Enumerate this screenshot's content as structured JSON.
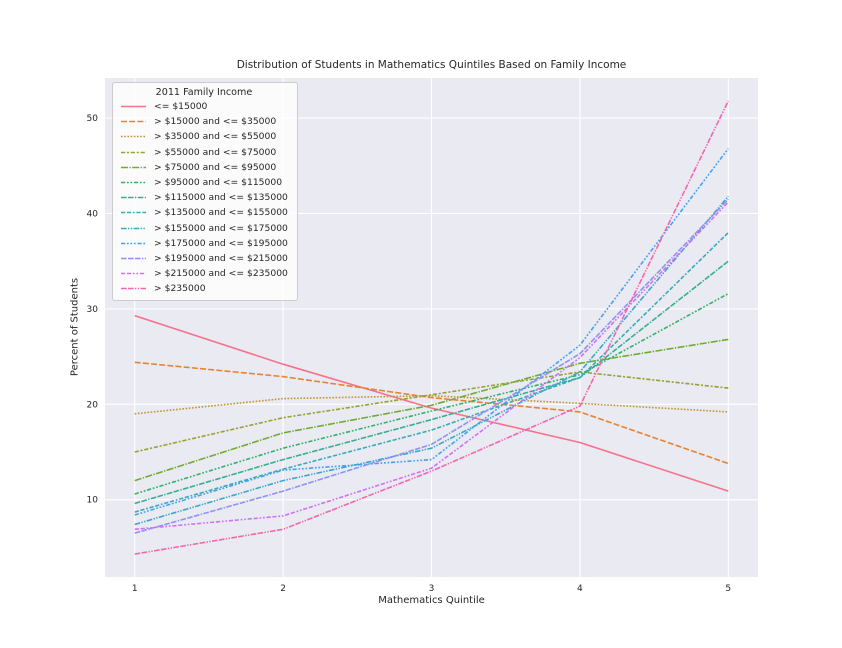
{
  "chart_data": {
    "type": "line",
    "title": "Distribution of Students in Mathematics Quintiles Based on Family Income",
    "xlabel": "Mathematics Quintile",
    "ylabel": "Percent of Students",
    "legend_title": "2011 Family Income",
    "legend_position": "upper left",
    "grid": true,
    "plot_bg": "#eaeaf2",
    "grid_color": "#ffffff",
    "text_color": "#262626",
    "x": [
      1,
      2,
      3,
      4,
      5
    ],
    "xticks": [
      1,
      2,
      3,
      4,
      5
    ],
    "yticks": [
      10,
      20,
      30,
      40,
      50
    ],
    "xlim": [
      0.8,
      5.2
    ],
    "ylim": [
      1.9,
      54.2
    ],
    "series": [
      {
        "name": "<= $15000",
        "color": "#f77189",
        "dash": "",
        "values": [
          29.3,
          24.2,
          19.6,
          16.0,
          10.9
        ]
      },
      {
        "name": "> $15000 and <= $35000",
        "color": "#e68332",
        "dash": "6,2.2",
        "values": [
          24.4,
          22.9,
          20.7,
          19.2,
          13.8
        ]
      },
      {
        "name": "> $35000 and <= $55000",
        "color": "#c29431",
        "dash": "1.6,1.6",
        "values": [
          19.0,
          20.6,
          20.9,
          20.1,
          19.2
        ]
      },
      {
        "name": "> $55000 and <= $75000",
        "color": "#98a231",
        "dash": "4.2,1.75,2.1,1.75",
        "values": [
          15.0,
          18.6,
          21.0,
          23.4,
          21.7
        ]
      },
      {
        "name": "> $75000 and <= $95000",
        "color": "#6fac31",
        "dash": "7,1.4,1.4,1.4",
        "values": [
          12.0,
          17.0,
          19.9,
          24.3,
          26.8
        ]
      },
      {
        "name": "> $95000 and <= $115000",
        "color": "#32b166",
        "dash": "4.2,1.75,1.75,1.75,1.75,1.75",
        "values": [
          10.6,
          15.4,
          19.3,
          23.1,
          31.6
        ]
      },
      {
        "name": "> $115000 and <= $135000",
        "color": "#35ae93",
        "dash": "5.6,1.4,5.6,1.4,1.4,1.4",
        "values": [
          9.6,
          14.2,
          18.4,
          22.8,
          35.0
        ]
      },
      {
        "name": "> $135000 and <= $155000",
        "color": "#37abb7",
        "dash": "4.2,1.75,4.2,1.75,1.75,1.75",
        "values": [
          8.7,
          13.2,
          17.3,
          22.8,
          38.0
        ]
      },
      {
        "name": "> $155000 and <= $175000",
        "color": "#38a8c8",
        "dash": "5.6,1.4,1.4,1.4,1.4,1.4",
        "values": [
          7.4,
          12.0,
          15.4,
          23.4,
          41.8
        ]
      },
      {
        "name": "> $175000 and <= $195000",
        "color": "#42a1f1",
        "dash": "4.2,1.75,1.75,1.75,1.75,1.75,1.75,1.75",
        "values": [
          8.4,
          13.1,
          14.2,
          26.2,
          46.8
        ]
      },
      {
        "name": "> $195000 and <= $215000",
        "color": "#8e92f4",
        "dash": "5.6,1.4,5.6,1.4,5.6,1.4,1.4,1.4",
        "values": [
          6.5,
          10.9,
          15.8,
          25.3,
          41.5
        ]
      },
      {
        "name": "> $215000 and <= $235000",
        "color": "#d070f4",
        "dash": "4.2,1.75,4.2,1.75,1.75,1.75,1.75,1.75",
        "values": [
          6.9,
          8.3,
          13.3,
          24.9,
          41.2
        ]
      },
      {
        "name": "> $235000",
        "color": "#f565b0",
        "dash": "5.6,1.4,5.6,1.4,1.4,1.4,1.4,1.4",
        "values": [
          4.3,
          6.9,
          13.0,
          19.8,
          51.8
        ]
      }
    ]
  }
}
